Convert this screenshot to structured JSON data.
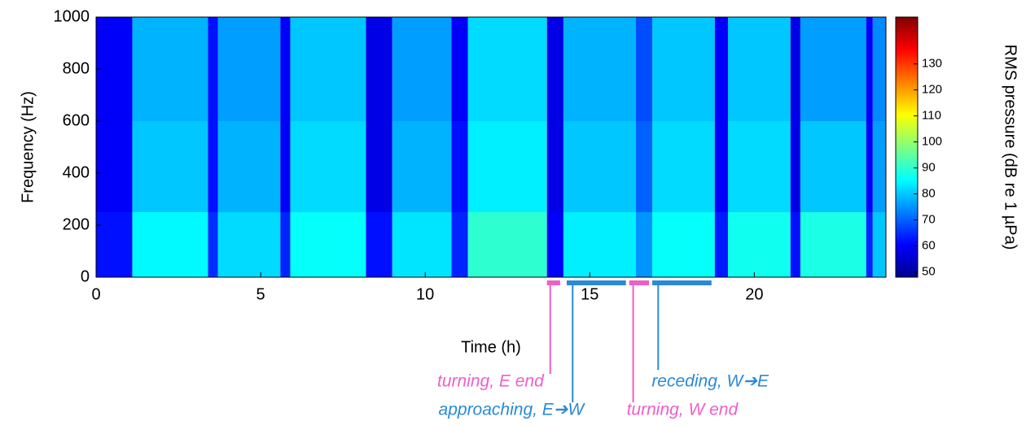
{
  "chart_data": {
    "type": "spectrogram",
    "x_label": "Time (h)",
    "y_label": "Frequency (Hz)",
    "colorbar_label": "RMS pressure (dB re 1 µPa)",
    "x": [
      0,
      1.1,
      3.4,
      3.7,
      5.6,
      5.9,
      8.2,
      9.0,
      10.8,
      11.3,
      13.7,
      14.2,
      16.4,
      16.9,
      18.8,
      19.2,
      21.1,
      21.4,
      23.4,
      23.6,
      24
    ],
    "y": [
      0,
      250,
      600,
      1000
    ],
    "values": [
      [
        62,
        85,
        65,
        82,
        64,
        86,
        62,
        83,
        64,
        90,
        60,
        84,
        75,
        86,
        63,
        87,
        62,
        88,
        64,
        80
      ],
      [
        60,
        80,
        62,
        78,
        60,
        82,
        58,
        78,
        62,
        84,
        58,
        80,
        70,
        82,
        60,
        82,
        58,
        80,
        60,
        76
      ],
      [
        60,
        78,
        62,
        76,
        60,
        80,
        58,
        76,
        60,
        82,
        58,
        78,
        68,
        80,
        60,
        80,
        58,
        76,
        60,
        74
      ]
    ],
    "xlim": [
      0,
      24
    ],
    "ylim": [
      0,
      1000
    ],
    "xticks": [
      0,
      5,
      10,
      15,
      20
    ],
    "yticks": [
      0,
      200,
      400,
      600,
      800,
      1000
    ],
    "clim": [
      48,
      148
    ],
    "cticks": [
      50,
      60,
      70,
      80,
      90,
      100,
      110,
      120,
      130
    ],
    "periods": [
      {
        "label": "turning, E end",
        "start": 13.7,
        "end": 14.1,
        "color": "#ee5fc8"
      },
      {
        "label": "approaching, E➔W",
        "start": 14.3,
        "end": 16.1,
        "color": "#2a8ad8"
      },
      {
        "label": "turning, W end",
        "start": 16.2,
        "end": 16.8,
        "color": "#ee5fc8"
      },
      {
        "label": "receding, W➔E",
        "start": 16.9,
        "end": 18.7,
        "color": "#2a8ad8"
      }
    ]
  }
}
